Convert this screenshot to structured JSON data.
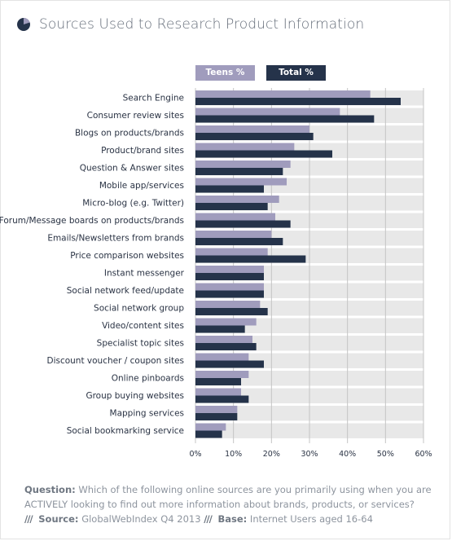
{
  "title": "Sources Used to Research Product Information",
  "colors": {
    "teens": "#a09cbd",
    "total": "#25334a",
    "row_background": "#e8e8e8",
    "gridline": "#c4c4c4",
    "text": "#2a3344",
    "muted": "#8d949e"
  },
  "icon": "pie-chart-icon",
  "chart_data": {
    "type": "bar",
    "orientation": "horizontal",
    "categories": [
      "Search Engine",
      "Consumer review sites",
      "Blogs on products/brands",
      "Product/brand sites",
      "Question & Answer sites",
      "Mobile app/services",
      "Micro-blog (e.g. Twitter)",
      "Forum/Message boards on products/brands",
      "Emails/Newsletters from brands",
      "Price comparison websites",
      "Instant messenger",
      "Social network feed/update",
      "Social network group",
      "Video/content sites",
      "Specialist topic sites",
      "Discount voucher / coupon sites",
      "Online pinboards",
      "Group buying websites",
      "Mapping services",
      "Social bookmarking service"
    ],
    "series": [
      {
        "name": "Teens %",
        "color": "#a09cbd",
        "values": [
          46,
          38,
          30,
          26,
          25,
          24,
          22,
          21,
          20,
          19,
          18,
          18,
          17,
          16,
          15,
          14,
          14,
          12,
          11,
          8
        ]
      },
      {
        "name": "Total %",
        "color": "#25334a",
        "values": [
          54,
          47,
          31,
          36,
          23,
          18,
          19,
          25,
          23,
          29,
          18,
          18,
          19,
          13,
          16,
          18,
          12,
          14,
          11,
          7
        ]
      }
    ],
    "xlim": [
      0,
      60
    ],
    "xticks": [
      "0%",
      "10%",
      "20%",
      "30%",
      "40%",
      "50%",
      "60%"
    ],
    "grid": true,
    "legend_position": "top"
  },
  "footer": {
    "question_label": "Question:",
    "question_text": "Which of the following online sources are you primarily using when you are ACTIVELY looking to find out more information about brands, products, or services?",
    "slashes": "///",
    "source_label": "Source:",
    "source_text": "GlobalWebIndex Q4 2013",
    "base_label": "Base:",
    "base_text": "Internet Users aged 16-64"
  }
}
